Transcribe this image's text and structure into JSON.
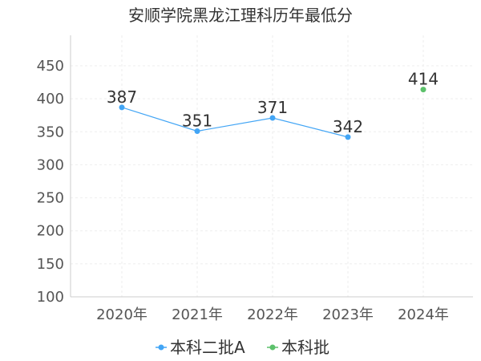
{
  "chart_data": {
    "type": "line",
    "title": "安顺学院黑龙江理科历年最低分",
    "categories": [
      "2020年",
      "2021年",
      "2022年",
      "2023年",
      "2024年"
    ],
    "ylim": [
      100,
      450
    ],
    "yticks": [
      100,
      150,
      200,
      250,
      300,
      350,
      400,
      450
    ],
    "grid": true,
    "legend_position": "bottom",
    "series": [
      {
        "name": "本科二批A",
        "color": "#42a5f5",
        "values": [
          387,
          351,
          371,
          342,
          null
        ]
      },
      {
        "name": "本科批",
        "color": "#5cc16b",
        "values": [
          null,
          null,
          null,
          null,
          414
        ]
      }
    ]
  }
}
